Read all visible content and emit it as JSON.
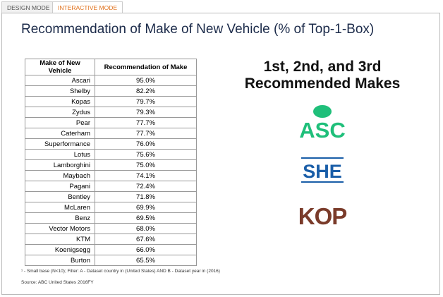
{
  "tabs": [
    "DESIGN MODE",
    "INTERACTIVE MODE"
  ],
  "title": "Recommendation of Make of New Vehicle (% of Top-1-Box)",
  "table": {
    "header": [
      "Make of New Vehicle",
      "Recommendation of Make"
    ],
    "rows": [
      [
        "Ascari",
        "95.0%"
      ],
      [
        "Shelby",
        "82.2%"
      ],
      [
        "Kopas",
        "79.7%"
      ],
      [
        "Zydus",
        "79.3%"
      ],
      [
        "Pear",
        "77.7%"
      ],
      [
        "Caterham",
        "77.7%"
      ],
      [
        "Superformance",
        "76.0%"
      ],
      [
        "Lotus",
        "75.6%"
      ],
      [
        "Lamborghini",
        "75.0%"
      ],
      [
        "Maybach",
        "74.1%"
      ],
      [
        "Pagani",
        "72.4%"
      ],
      [
        "Bentley",
        "71.8%"
      ],
      [
        "McLaren",
        "69.9%"
      ],
      [
        "Benz",
        "69.5%"
      ],
      [
        "Vector Motors",
        "68.0%"
      ],
      [
        "KTM",
        "67.6%"
      ],
      [
        "Koenigsegg",
        "66.0%"
      ],
      [
        "Burton",
        "65.5%"
      ]
    ]
  },
  "side": {
    "heading_line1": "1st, 2nd, and 3rd",
    "heading_line2": "Recommended Makes",
    "logos": [
      "ASC",
      "SHE",
      "KOP"
    ]
  },
  "footnote": "¹ - Small base (N<10);   Filter: A - Dataset country in (United States) AND B - Dataset year in (2016)",
  "source": "Source: ABC United States 2016FY"
}
